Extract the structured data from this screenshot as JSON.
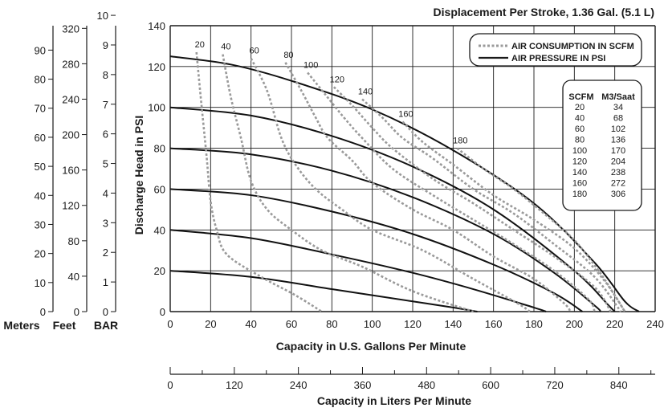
{
  "chart_data": {
    "type": "line",
    "title": "Displacement Per Stroke, 1.36 Gal. (5.1 L)",
    "xlabel": "Capacity in U.S. Gallons Per Minute",
    "ylabel": "Discharge Head in PSI",
    "xlim": [
      0,
      240
    ],
    "ylim": [
      0,
      140
    ],
    "x_ticks": [
      0,
      20,
      40,
      60,
      80,
      100,
      120,
      140,
      160,
      180,
      200,
      220,
      240
    ],
    "y_ticks": [
      0,
      20,
      40,
      60,
      80,
      100,
      120,
      140
    ],
    "grid": true,
    "secondary_x": {
      "label": "Capacity in Liters Per Minute",
      "lim": [
        0,
        908
      ],
      "ticks": [
        0,
        120,
        240,
        360,
        480,
        600,
        720,
        840
      ]
    },
    "left_axes": [
      {
        "label": "Meters",
        "lim": [
          0,
          98.4
        ],
        "ticks": [
          0,
          10,
          20,
          30,
          40,
          50,
          60,
          70,
          80,
          90
        ]
      },
      {
        "label": "Feet",
        "lim": [
          0,
          323
        ],
        "ticks": [
          0,
          40,
          80,
          120,
          160,
          200,
          240,
          280,
          320
        ]
      },
      {
        "label": "BAR",
        "lim": [
          0,
          9.65
        ],
        "ticks": [
          0,
          1,
          2,
          3,
          4,
          5,
          6,
          7,
          8,
          9,
          10
        ]
      }
    ],
    "legend": {
      "position": "top-right",
      "entries": [
        {
          "label": "AIR CONSUMPTION IN SCFM",
          "style": "dotted"
        },
        {
          "label": "AIR PRESSURE IN PSI",
          "style": "solid"
        }
      ]
    },
    "conversion_table": {
      "headers": [
        "SCFM",
        "M3/Saat"
      ],
      "rows": [
        [
          "20",
          "34"
        ],
        [
          "40",
          "68"
        ],
        [
          "60",
          "102"
        ],
        [
          "80",
          "136"
        ],
        [
          "100",
          "170"
        ],
        [
          "120",
          "204"
        ],
        [
          "140",
          "238"
        ],
        [
          "160",
          "272"
        ],
        [
          "180",
          "306"
        ]
      ]
    },
    "pressure_series": [
      {
        "points": [
          [
            0,
            20
          ],
          [
            40,
            17
          ],
          [
            80,
            11
          ],
          [
            100,
            8
          ],
          [
            120,
            5
          ],
          [
            140,
            2
          ],
          [
            152,
            0
          ]
        ]
      },
      {
        "points": [
          [
            0,
            40
          ],
          [
            40,
            36
          ],
          [
            80,
            28
          ],
          [
            120,
            19
          ],
          [
            150,
            11
          ],
          [
            180,
            2
          ],
          [
            186,
            0
          ]
        ]
      },
      {
        "points": [
          [
            0,
            60
          ],
          [
            40,
            57
          ],
          [
            80,
            49
          ],
          [
            120,
            38
          ],
          [
            160,
            23
          ],
          [
            190,
            9
          ],
          [
            204,
            0
          ]
        ]
      },
      {
        "points": [
          [
            0,
            80
          ],
          [
            40,
            77
          ],
          [
            80,
            69
          ],
          [
            120,
            56
          ],
          [
            160,
            38
          ],
          [
            190,
            19
          ],
          [
            210,
            3
          ],
          [
            213,
            0
          ]
        ]
      },
      {
        "points": [
          [
            0,
            100
          ],
          [
            40,
            96
          ],
          [
            80,
            86
          ],
          [
            120,
            71
          ],
          [
            160,
            50
          ],
          [
            200,
            20
          ],
          [
            217,
            3
          ],
          [
            220,
            0
          ]
        ]
      },
      {
        "points": [
          [
            0,
            125
          ],
          [
            30,
            121
          ],
          [
            60,
            113
          ],
          [
            100,
            99
          ],
          [
            140,
            79
          ],
          [
            180,
            53
          ],
          [
            210,
            24
          ],
          [
            225,
            5
          ],
          [
            232,
            0
          ]
        ]
      }
    ],
    "air_series": [
      {
        "label": "20",
        "points": [
          [
            13,
            127
          ],
          [
            15,
            106
          ],
          [
            18,
            76
          ],
          [
            20,
            54
          ],
          [
            23,
            40
          ],
          [
            28,
            28
          ],
          [
            45,
            17
          ],
          [
            62,
            8
          ],
          [
            75,
            0
          ]
        ]
      },
      {
        "label": "40",
        "points": [
          [
            26,
            126
          ],
          [
            30,
            105
          ],
          [
            35,
            85
          ],
          [
            40,
            64
          ],
          [
            48,
            50
          ],
          [
            60,
            40
          ],
          [
            75,
            30
          ],
          [
            95,
            22
          ],
          [
            120,
            10
          ],
          [
            150,
            0
          ]
        ]
      },
      {
        "label": "60",
        "points": [
          [
            40,
            124
          ],
          [
            48,
            108
          ],
          [
            55,
            85
          ],
          [
            62,
            72
          ],
          [
            72,
            60
          ],
          [
            85,
            50
          ],
          [
            100,
            40
          ],
          [
            125,
            30
          ],
          [
            150,
            16
          ],
          [
            172,
            4
          ],
          [
            178,
            0
          ]
        ]
      },
      {
        "label": "80",
        "points": [
          [
            57,
            122
          ],
          [
            65,
            108
          ],
          [
            72,
            95
          ],
          [
            78,
            85
          ],
          [
            90,
            74
          ],
          [
            100,
            63
          ],
          [
            120,
            50
          ],
          [
            140,
            40
          ],
          [
            160,
            27
          ],
          [
            180,
            16
          ],
          [
            195,
            4
          ],
          [
            198,
            0
          ]
        ]
      },
      {
        "label": "100",
        "points": [
          [
            68,
            117
          ],
          [
            77,
            106
          ],
          [
            86,
            95
          ],
          [
            95,
            85
          ],
          [
            110,
            70
          ],
          [
            130,
            57
          ],
          [
            150,
            45
          ],
          [
            170,
            33
          ],
          [
            190,
            20
          ],
          [
            207,
            6
          ],
          [
            210,
            0
          ]
        ]
      },
      {
        "label": "120",
        "points": [
          [
            81,
            110
          ],
          [
            90,
            101
          ],
          [
            100,
            90
          ],
          [
            110,
            80
          ],
          [
            130,
            65
          ],
          [
            150,
            53
          ],
          [
            170,
            40
          ],
          [
            190,
            27
          ],
          [
            210,
            12
          ],
          [
            218,
            0
          ]
        ]
      },
      {
        "label": "140",
        "points": [
          [
            95,
            104
          ],
          [
            105,
            95
          ],
          [
            115,
            85
          ],
          [
            130,
            75
          ],
          [
            150,
            60
          ],
          [
            170,
            48
          ],
          [
            190,
            33
          ],
          [
            210,
            17
          ],
          [
            223,
            0
          ]
        ]
      },
      {
        "label": "160",
        "points": [
          [
            115,
            93
          ],
          [
            125,
            83
          ],
          [
            140,
            72
          ],
          [
            160,
            57
          ],
          [
            180,
            45
          ],
          [
            200,
            31
          ],
          [
            215,
            15
          ],
          [
            225,
            0
          ]
        ]
      },
      {
        "label": "180",
        "points": [
          [
            142,
            80
          ],
          [
            155,
            70
          ],
          [
            170,
            60
          ],
          [
            185,
            48
          ],
          [
            200,
            35
          ],
          [
            212,
            20
          ],
          [
            220,
            8
          ],
          [
            225,
            0
          ]
        ]
      }
    ]
  }
}
